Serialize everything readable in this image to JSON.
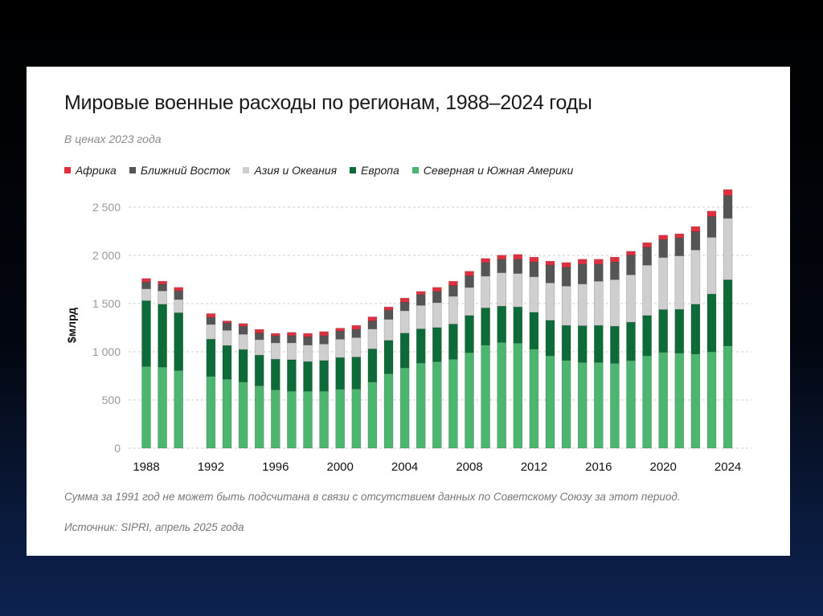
{
  "chart_data": {
    "type": "bar",
    "stacked": true,
    "title": "Мировые военные расходы по регионам, 1988–2024 годы",
    "subtitle": "В ценах 2023 года",
    "ylabel": "$млрд",
    "xlabel": "",
    "ylim": [
      0,
      2700
    ],
    "yticks": [
      0,
      500,
      1000,
      1500,
      2000,
      2500
    ],
    "ytick_labels": [
      "0",
      "500",
      "1 000",
      "1 500",
      "2 000",
      "2 500"
    ],
    "xtick_labels": [
      "1988",
      "1992",
      "1996",
      "2000",
      "2004",
      "2008",
      "2012",
      "2016",
      "2020",
      "2024"
    ],
    "grid": true,
    "legend_position": "top-left",
    "categories": [
      1988,
      1989,
      1990,
      1991,
      1992,
      1993,
      1994,
      1995,
      1996,
      1997,
      1998,
      1999,
      2000,
      2001,
      2002,
      2003,
      2004,
      2005,
      2006,
      2007,
      2008,
      2009,
      2010,
      2011,
      2012,
      2013,
      2014,
      2015,
      2016,
      2017,
      2018,
      2019,
      2020,
      2021,
      2022,
      2023,
      2024
    ],
    "series": [
      {
        "name": "Северная и Южная Америки",
        "color": "#4cb56f",
        "values": [
          848,
          842,
          806,
          null,
          745,
          717,
          687,
          648,
          606,
          592,
          592,
          592,
          612,
          614,
          687,
          773,
          834,
          884,
          898,
          923,
          992,
          1070,
          1098,
          1090,
          1029,
          959,
          912,
          890,
          890,
          881,
          909,
          959,
          995,
          987,
          979,
          1001,
          1062
        ]
      },
      {
        "name": "Европа",
        "color": "#0d6b3a",
        "values": [
          681,
          651,
          598,
          null,
          386,
          348,
          336,
          317,
          317,
          325,
          306,
          317,
          328,
          331,
          342,
          345,
          359,
          353,
          353,
          364,
          384,
          384,
          375,
          375,
          380,
          367,
          361,
          380,
          383,
          384,
          398,
          417,
          442,
          453,
          514,
          598,
          684
        ]
      },
      {
        "name": "Азия и Океания",
        "color": "#cfcfcf",
        "values": [
          125,
          139,
          139,
          null,
          153,
          158,
          159,
          161,
          170,
          176,
          172,
          172,
          191,
          203,
          208,
          219,
          233,
          245,
          259,
          289,
          292,
          331,
          348,
          348,
          370,
          389,
          409,
          434,
          459,
          484,
          492,
          523,
          542,
          556,
          564,
          589,
          639
        ]
      },
      {
        "name": "Ближний Восток",
        "color": "#555555",
        "values": [
          70,
          69,
          89,
          null,
          73,
          75,
          83,
          69,
          72,
          75,
          84,
          87,
          84,
          84,
          83,
          95,
          89,
          111,
          116,
          111,
          120,
          141,
          139,
          147,
          153,
          184,
          194,
          206,
          178,
          183,
          203,
          186,
          184,
          186,
          189,
          217,
          237
        ]
      },
      {
        "name": "Африка",
        "color": "#e03040",
        "values": [
          36,
          31,
          36,
          null,
          39,
          22,
          28,
          37,
          25,
          33,
          36,
          41,
          30,
          41,
          42,
          33,
          42,
          33,
          42,
          45,
          47,
          42,
          42,
          50,
          50,
          41,
          50,
          50,
          50,
          50,
          41,
          47,
          47,
          42,
          53,
          55,
          61
        ]
      }
    ],
    "legend_order": [
      "Африка",
      "Ближний Восток",
      "Азия и Океания",
      "Европа",
      "Северная и Южная Америки"
    ],
    "annotations": [
      "Сумма за 1991 год не может быть подсчитана в связи с отсутствием данных по Советскому Союзу за этот период.",
      "Источник: SIPRI, апрель 2025 года"
    ]
  }
}
